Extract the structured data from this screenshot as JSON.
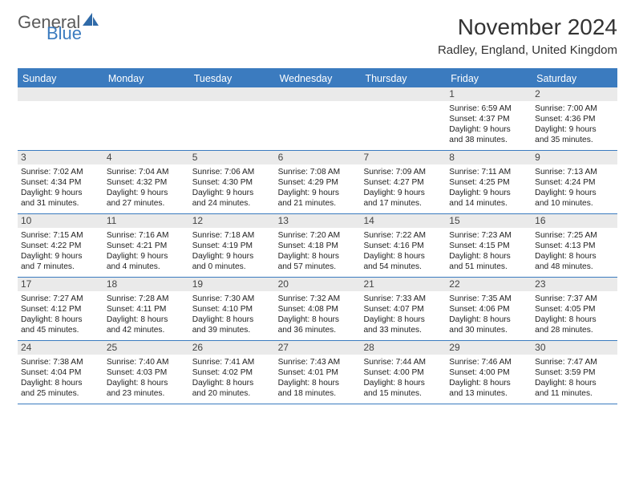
{
  "brand": {
    "a": "General",
    "b": "Blue"
  },
  "title": "November 2024",
  "location": "Radley, England, United Kingdom",
  "colors": {
    "brand_blue": "#3b7bbf",
    "header_bg": "#3b7bbf",
    "header_fg": "#ffffff",
    "daybar_bg": "#eaeaea",
    "text": "#222222",
    "border": "#3b7bbf"
  },
  "font": {
    "family": "Arial",
    "title_size": 28,
    "location_size": 15,
    "dow_size": 12.5,
    "body_size": 10.2
  },
  "daysOfWeek": [
    "Sunday",
    "Monday",
    "Tuesday",
    "Wednesday",
    "Thursday",
    "Friday",
    "Saturday"
  ],
  "weeks": [
    [
      {
        "day": "",
        "lines": [
          "",
          "",
          "",
          ""
        ]
      },
      {
        "day": "",
        "lines": [
          "",
          "",
          "",
          ""
        ]
      },
      {
        "day": "",
        "lines": [
          "",
          "",
          "",
          ""
        ]
      },
      {
        "day": "",
        "lines": [
          "",
          "",
          "",
          ""
        ]
      },
      {
        "day": "",
        "lines": [
          "",
          "",
          "",
          ""
        ]
      },
      {
        "day": "1",
        "lines": [
          "Sunrise: 6:59 AM",
          "Sunset: 4:37 PM",
          "Daylight: 9 hours",
          "and 38 minutes."
        ]
      },
      {
        "day": "2",
        "lines": [
          "Sunrise: 7:00 AM",
          "Sunset: 4:36 PM",
          "Daylight: 9 hours",
          "and 35 minutes."
        ]
      }
    ],
    [
      {
        "day": "3",
        "lines": [
          "Sunrise: 7:02 AM",
          "Sunset: 4:34 PM",
          "Daylight: 9 hours",
          "and 31 minutes."
        ]
      },
      {
        "day": "4",
        "lines": [
          "Sunrise: 7:04 AM",
          "Sunset: 4:32 PM",
          "Daylight: 9 hours",
          "and 27 minutes."
        ]
      },
      {
        "day": "5",
        "lines": [
          "Sunrise: 7:06 AM",
          "Sunset: 4:30 PM",
          "Daylight: 9 hours",
          "and 24 minutes."
        ]
      },
      {
        "day": "6",
        "lines": [
          "Sunrise: 7:08 AM",
          "Sunset: 4:29 PM",
          "Daylight: 9 hours",
          "and 21 minutes."
        ]
      },
      {
        "day": "7",
        "lines": [
          "Sunrise: 7:09 AM",
          "Sunset: 4:27 PM",
          "Daylight: 9 hours",
          "and 17 minutes."
        ]
      },
      {
        "day": "8",
        "lines": [
          "Sunrise: 7:11 AM",
          "Sunset: 4:25 PM",
          "Daylight: 9 hours",
          "and 14 minutes."
        ]
      },
      {
        "day": "9",
        "lines": [
          "Sunrise: 7:13 AM",
          "Sunset: 4:24 PM",
          "Daylight: 9 hours",
          "and 10 minutes."
        ]
      }
    ],
    [
      {
        "day": "10",
        "lines": [
          "Sunrise: 7:15 AM",
          "Sunset: 4:22 PM",
          "Daylight: 9 hours",
          "and 7 minutes."
        ]
      },
      {
        "day": "11",
        "lines": [
          "Sunrise: 7:16 AM",
          "Sunset: 4:21 PM",
          "Daylight: 9 hours",
          "and 4 minutes."
        ]
      },
      {
        "day": "12",
        "lines": [
          "Sunrise: 7:18 AM",
          "Sunset: 4:19 PM",
          "Daylight: 9 hours",
          "and 0 minutes."
        ]
      },
      {
        "day": "13",
        "lines": [
          "Sunrise: 7:20 AM",
          "Sunset: 4:18 PM",
          "Daylight: 8 hours",
          "and 57 minutes."
        ]
      },
      {
        "day": "14",
        "lines": [
          "Sunrise: 7:22 AM",
          "Sunset: 4:16 PM",
          "Daylight: 8 hours",
          "and 54 minutes."
        ]
      },
      {
        "day": "15",
        "lines": [
          "Sunrise: 7:23 AM",
          "Sunset: 4:15 PM",
          "Daylight: 8 hours",
          "and 51 minutes."
        ]
      },
      {
        "day": "16",
        "lines": [
          "Sunrise: 7:25 AM",
          "Sunset: 4:13 PM",
          "Daylight: 8 hours",
          "and 48 minutes."
        ]
      }
    ],
    [
      {
        "day": "17",
        "lines": [
          "Sunrise: 7:27 AM",
          "Sunset: 4:12 PM",
          "Daylight: 8 hours",
          "and 45 minutes."
        ]
      },
      {
        "day": "18",
        "lines": [
          "Sunrise: 7:28 AM",
          "Sunset: 4:11 PM",
          "Daylight: 8 hours",
          "and 42 minutes."
        ]
      },
      {
        "day": "19",
        "lines": [
          "Sunrise: 7:30 AM",
          "Sunset: 4:10 PM",
          "Daylight: 8 hours",
          "and 39 minutes."
        ]
      },
      {
        "day": "20",
        "lines": [
          "Sunrise: 7:32 AM",
          "Sunset: 4:08 PM",
          "Daylight: 8 hours",
          "and 36 minutes."
        ]
      },
      {
        "day": "21",
        "lines": [
          "Sunrise: 7:33 AM",
          "Sunset: 4:07 PM",
          "Daylight: 8 hours",
          "and 33 minutes."
        ]
      },
      {
        "day": "22",
        "lines": [
          "Sunrise: 7:35 AM",
          "Sunset: 4:06 PM",
          "Daylight: 8 hours",
          "and 30 minutes."
        ]
      },
      {
        "day": "23",
        "lines": [
          "Sunrise: 7:37 AM",
          "Sunset: 4:05 PM",
          "Daylight: 8 hours",
          "and 28 minutes."
        ]
      }
    ],
    [
      {
        "day": "24",
        "lines": [
          "Sunrise: 7:38 AM",
          "Sunset: 4:04 PM",
          "Daylight: 8 hours",
          "and 25 minutes."
        ]
      },
      {
        "day": "25",
        "lines": [
          "Sunrise: 7:40 AM",
          "Sunset: 4:03 PM",
          "Daylight: 8 hours",
          "and 23 minutes."
        ]
      },
      {
        "day": "26",
        "lines": [
          "Sunrise: 7:41 AM",
          "Sunset: 4:02 PM",
          "Daylight: 8 hours",
          "and 20 minutes."
        ]
      },
      {
        "day": "27",
        "lines": [
          "Sunrise: 7:43 AM",
          "Sunset: 4:01 PM",
          "Daylight: 8 hours",
          "and 18 minutes."
        ]
      },
      {
        "day": "28",
        "lines": [
          "Sunrise: 7:44 AM",
          "Sunset: 4:00 PM",
          "Daylight: 8 hours",
          "and 15 minutes."
        ]
      },
      {
        "day": "29",
        "lines": [
          "Sunrise: 7:46 AM",
          "Sunset: 4:00 PM",
          "Daylight: 8 hours",
          "and 13 minutes."
        ]
      },
      {
        "day": "30",
        "lines": [
          "Sunrise: 7:47 AM",
          "Sunset: 3:59 PM",
          "Daylight: 8 hours",
          "and 11 minutes."
        ]
      }
    ]
  ]
}
